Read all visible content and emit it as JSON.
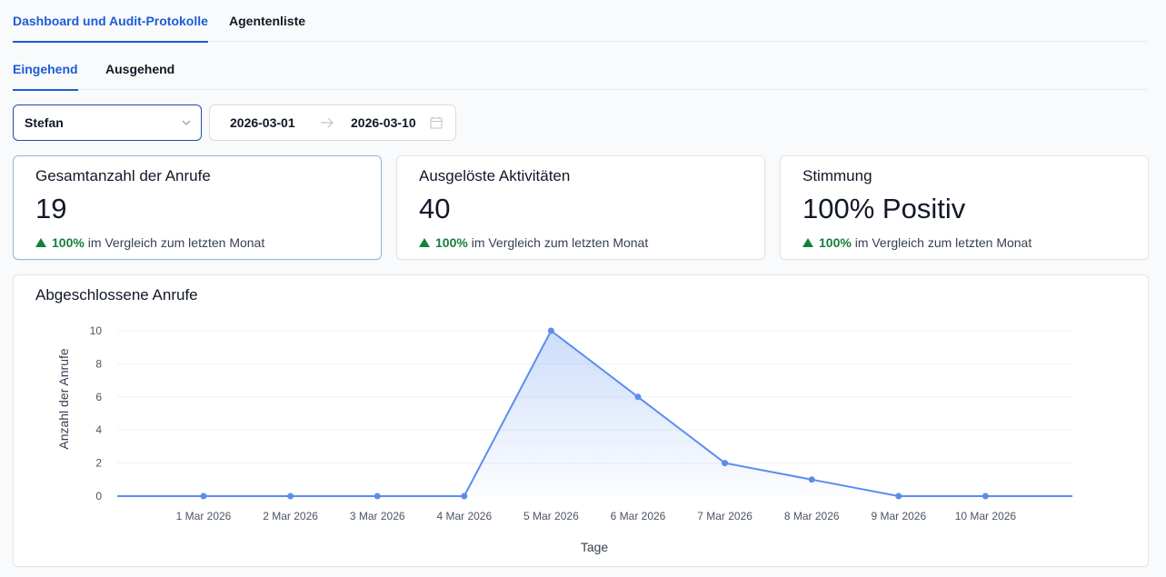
{
  "tabs": [
    {
      "label": "Dashboard und Audit-Protokolle",
      "active": true
    },
    {
      "label": "Agentenliste",
      "active": false
    }
  ],
  "subtabs": [
    {
      "label": "Eingehend",
      "active": true
    },
    {
      "label": "Ausgehend",
      "active": false
    }
  ],
  "filters": {
    "agent": "Stefan",
    "date_start": "2026-03-01",
    "date_end": "2026-03-10"
  },
  "stats": [
    {
      "title": "Gesamtanzahl der Anrufe",
      "value": "19",
      "change": "100%",
      "change_text": "im Vergleich zum letzten Monat"
    },
    {
      "title": "Ausgelöste Aktivitäten",
      "value": "40",
      "change": "100%",
      "change_text": "im Vergleich zum letzten Monat"
    },
    {
      "title": "Stimmung",
      "value": "100% Positiv",
      "change": "100%",
      "change_text": "im Vergleich zum letzten Monat"
    }
  ],
  "colors": {
    "accent": "#1d5bd8",
    "positive": "#15803d",
    "line": "#5b8def"
  },
  "icons": [
    "chevron-down-icon",
    "arrow-right-icon",
    "calendar-icon",
    "triangle-up-icon"
  ],
  "chart_data": {
    "type": "area",
    "title": "Abgeschlossene Anrufe",
    "xlabel": "Tage",
    "ylabel": "Anzahl der Anrufe",
    "categories": [
      "1 Mar 2026",
      "2 Mar 2026",
      "3 Mar 2026",
      "4 Mar 2026",
      "5 Mar 2026",
      "6 Mar 2026",
      "7 Mar 2026",
      "8 Mar 2026",
      "9 Mar 2026",
      "10 Mar 2026"
    ],
    "values": [
      0,
      0,
      0,
      0,
      10,
      6,
      2,
      1,
      0,
      0
    ],
    "yticks": [
      0,
      2,
      4,
      6,
      8,
      10
    ],
    "ylim": [
      0,
      10
    ],
    "grid": true,
    "legend": "none"
  }
}
